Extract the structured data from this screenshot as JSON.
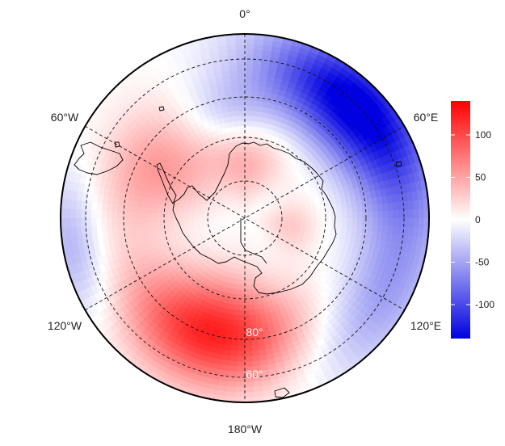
{
  "map": {
    "projection": "south-polar-stereographic",
    "longitude_labels": {
      "top": "0°",
      "upper_left": "60°W",
      "upper_right": "60°E",
      "lower_left": "120°W",
      "lower_right": "120°E",
      "bottom": "180°W"
    },
    "latitude_labels": [
      "80°",
      "60°"
    ],
    "colorscale": {
      "min": -140,
      "max": 140,
      "low_color": "#0000e0",
      "mid_color": "#ffffff",
      "high_color": "#ff0000",
      "ticks": [
        "100",
        "50",
        "0",
        "-50",
        "-100"
      ]
    }
  }
}
